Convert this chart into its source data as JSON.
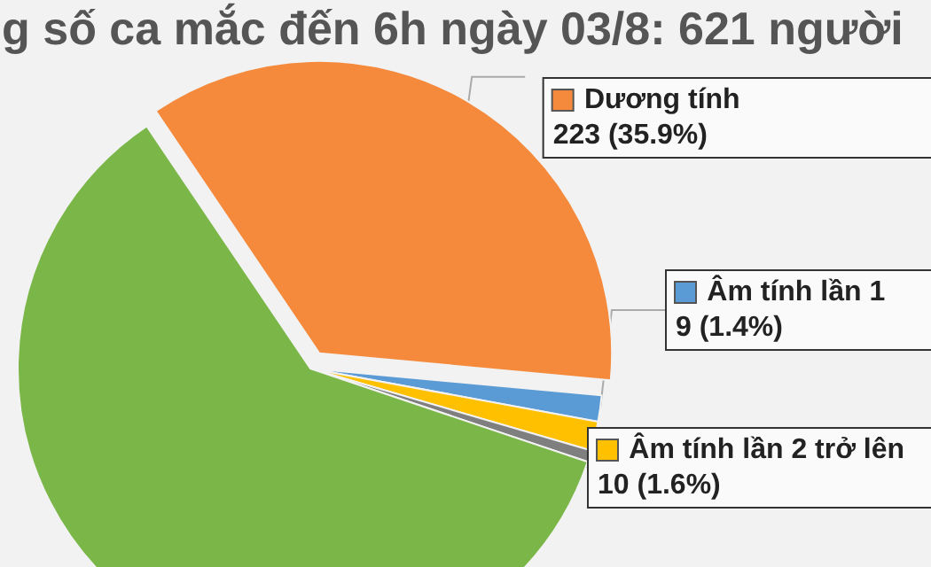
{
  "chart_data": {
    "type": "pie",
    "title": "g số ca mắc đến 6h ngày 03/8: 621 người",
    "categories": [
      "Dương tính",
      "Âm tính lần 1",
      "Âm tính lần 2 trở lên",
      null,
      null
    ],
    "values": [
      223,
      9,
      10,
      4,
      375
    ],
    "colors": [
      "#f58a3c",
      "#5b9bd5",
      "#ffc000",
      "#7f7f7f",
      "#7ab648"
    ],
    "value_labels": [
      "223 (35.9%)",
      "9 (1.4%)",
      "10 (1.6%)",
      null,
      null
    ],
    "legend": "right"
  }
}
